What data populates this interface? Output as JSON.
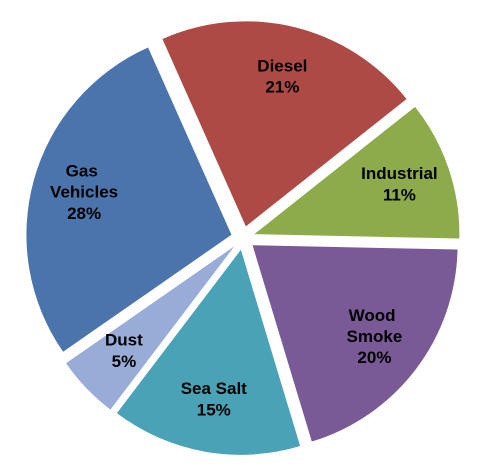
{
  "chart_data": {
    "type": "pie",
    "categories": [
      "Diesel",
      "Industrial",
      "Wood Smoke",
      "Sea Salt",
      "Dust",
      "Gas Vehicles"
    ],
    "values": [
      21,
      11,
      20,
      15,
      5,
      28
    ],
    "value_labels": [
      "21%",
      "11%",
      "20%",
      "15%",
      "5%",
      "28%"
    ],
    "colors": [
      "#ad4a45",
      "#8eab4c",
      "#7a5a96",
      "#49a2b5",
      "#98acd7",
      "#4a74ab"
    ]
  }
}
